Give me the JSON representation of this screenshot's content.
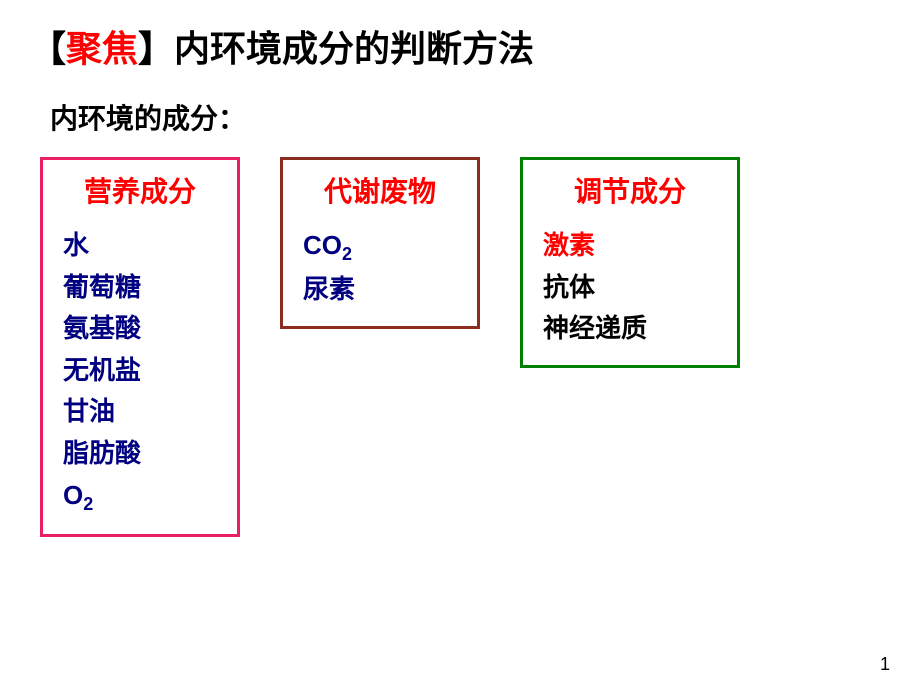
{
  "title": {
    "bracket_open": "【",
    "focus": "聚焦",
    "bracket_close": "】",
    "rest": "内环境成分的判断方法"
  },
  "subtitle": "内环境的成分：",
  "boxes": {
    "box1": {
      "title": "营养成分",
      "border_color": "#e91e63",
      "items": [
        {
          "text": "水",
          "color": "#000080"
        },
        {
          "text": "葡萄糖",
          "color": "#000080"
        },
        {
          "text": "氨基酸",
          "color": "#000080"
        },
        {
          "text": "无机盐",
          "color": "#000080"
        },
        {
          "text": "甘油",
          "color": "#000080"
        },
        {
          "text": "脂肪酸",
          "color": "#000080"
        },
        {
          "text": "O",
          "sub": "2",
          "color": "#000080"
        }
      ]
    },
    "box2": {
      "title": "代谢废物",
      "border_color": "#8b2e1f",
      "items": [
        {
          "text": "CO",
          "sub": "2",
          "color": "#000080"
        },
        {
          "text": "尿素",
          "color": "#000080"
        }
      ]
    },
    "box3": {
      "title": "调节成分",
      "border_color": "#008000",
      "items": [
        {
          "text": "激素",
          "color": "#ff0000"
        },
        {
          "text": "抗体",
          "color": "#000000"
        },
        {
          "text": "神经递质",
          "color": "#000000"
        }
      ]
    }
  },
  "page_number": "1",
  "colors": {
    "title_focus": "#ff0000",
    "title_text": "#000000",
    "box_title": "#ff0000",
    "navy": "#000080",
    "red": "#ff0000",
    "black": "#000000",
    "background": "#ffffff"
  },
  "typography": {
    "title_fontsize": 36,
    "subtitle_fontsize": 28,
    "box_title_fontsize": 28,
    "item_fontsize": 26,
    "font_family": "SimHei"
  }
}
